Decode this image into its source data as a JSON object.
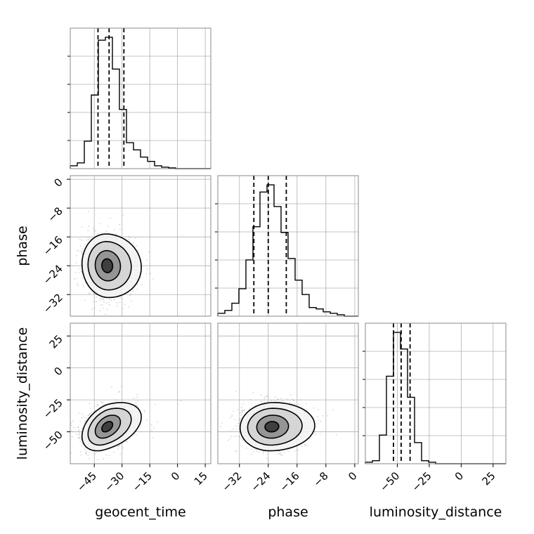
{
  "chart_data": {
    "type": "corner",
    "parameters": [
      "geocent_time",
      "phase",
      "luminosity_distance"
    ],
    "axis_labels": {
      "x": [
        "geocent_time",
        "phase",
        "luminosity_distance"
      ],
      "y": [
        "",
        "phase",
        "luminosity_distance"
      ]
    },
    "ranges": {
      "geocent_time": [
        -58,
        18
      ],
      "phase": [
        -38,
        1
      ],
      "luminosity_distance": [
        -75,
        35
      ]
    },
    "ticks": {
      "geocent_time": [
        -45,
        -30,
        -15,
        0,
        15
      ],
      "phase": [
        -32,
        -24,
        -16,
        -8,
        0
      ],
      "luminosity_distance": [
        -50,
        -25,
        0,
        25
      ]
    },
    "tick_labels": {
      "geocent_time": [
        "−45",
        "−30",
        "−15",
        "0",
        "15"
      ],
      "phase": [
        "−32",
        "−24",
        "−16",
        "−8",
        "0"
      ],
      "luminosity_distance": [
        "−50",
        "−25",
        "0",
        "25"
      ]
    },
    "quantiles": {
      "geocent_time": [
        -43,
        -37,
        -29
      ],
      "phase": [
        -28,
        -24,
        -19
      ],
      "luminosity_distance": [
        -53,
        -47,
        -40
      ]
    },
    "histograms": {
      "geocent_time": {
        "edges": [
          -58,
          -54.2,
          -50.4,
          -46.6,
          -42.8,
          -39,
          -35.2,
          -31.4,
          -27.6,
          -23.8,
          -20,
          -16.2,
          -12.4,
          -8.6,
          -4.8,
          -1,
          2.8,
          6.6,
          10.6,
          14.4,
          18
        ],
        "counts": [
          0.02,
          0.04,
          0.19,
          0.51,
          0.89,
          0.91,
          0.69,
          0.41,
          0.18,
          0.13,
          0.08,
          0.05,
          0.02,
          0.01,
          0.005,
          0.0,
          0.0,
          0.0,
          0.0,
          0.0
        ]
      },
      "phase": {
        "edges": [
          -38,
          -36.05,
          -34.1,
          -32.15,
          -30.2,
          -28.25,
          -26.3,
          -24.35,
          -22.4,
          -20.45,
          -18.5,
          -16.55,
          -14.6,
          -12.65,
          -10.7,
          -8.75,
          -6.8,
          -4.85,
          -2.9,
          -0.95,
          1
        ],
        "counts": [
          0.02,
          0.04,
          0.09,
          0.19,
          0.39,
          0.62,
          0.86,
          0.91,
          0.76,
          0.58,
          0.4,
          0.25,
          0.15,
          0.06,
          0.05,
          0.03,
          0.02,
          0.01,
          0.0,
          0.0
        ]
      },
      "luminosity_distance": {
        "edges": [
          -75,
          -69.5,
          -64,
          -58.5,
          -53,
          -47.5,
          -42,
          -36.5,
          -31,
          -25.5,
          -20,
          -14.5,
          -9,
          -3.5,
          2,
          7.5,
          13,
          18.5,
          24,
          29.5,
          35
        ],
        "counts": [
          0.01,
          0.02,
          0.19,
          0.58,
          0.87,
          0.76,
          0.44,
          0.14,
          0.02,
          0.01,
          0.0,
          0.0,
          0.0,
          0.0,
          0.0,
          0.0,
          0.0,
          0.0,
          0.0,
          0.0
        ]
      }
    },
    "pairs": [
      {
        "x": "geocent_time",
        "y": "phase",
        "mean": [
          -38,
          -24
        ],
        "sd": [
          6.5,
          4.2
        ],
        "rho": -0.05
      },
      {
        "x": "geocent_time",
        "y": "luminosity_distance",
        "mean": [
          -38,
          -46
        ],
        "sd": [
          6.5,
          9
        ],
        "rho": 0.4
      },
      {
        "x": "phase",
        "y": "luminosity_distance",
        "mean": [
          -23,
          -46
        ],
        "sd": [
          4.2,
          9
        ],
        "rho": 0.05
      }
    ],
    "grid": true,
    "colors": {
      "line": "#000000",
      "grid": "#b0b0b0",
      "points": "#8c8c8c"
    }
  }
}
